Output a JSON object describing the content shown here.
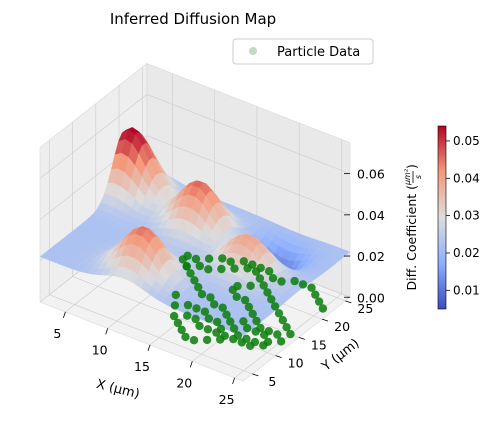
{
  "chart_data": {
    "type": "surface",
    "title": "Inferred Diffusion Map",
    "xlabel": "X (μm)",
    "ylabel": "Y (μm)",
    "zlabel_main": "Diff. Coefficient (",
    "zlabel_num": "μm²",
    "zlabel_den": "s",
    "zlabel_close": ")",
    "x_ticks": [
      5,
      10,
      15,
      20,
      25
    ],
    "y_ticks": [
      5,
      10,
      15,
      20,
      25
    ],
    "z_ticks": [
      "0.00",
      "0.02",
      "0.04",
      "0.06"
    ],
    "xlim": [
      2,
      26
    ],
    "ylim": [
      3,
      26
    ],
    "zlim": [
      0,
      0.06
    ],
    "grid": true,
    "legend": {
      "position": "top-right",
      "entries": [
        "Particle Data"
      ]
    },
    "colorbar": {
      "cmap": "coolwarm",
      "min": 0.005,
      "max": 0.054,
      "ticks": [
        "0.01",
        "0.02",
        "0.03",
        "0.04",
        "0.05"
      ]
    },
    "surface_peaks": [
      {
        "x": 3,
        "y": 21,
        "z": 0.054
      },
      {
        "x": 12,
        "y": 19,
        "z": 0.046
      },
      {
        "x": 12,
        "y": 7,
        "z": 0.045
      },
      {
        "x": 20,
        "y": 15,
        "z": 0.04
      }
    ],
    "surface_trough": {
      "x": 20,
      "y": 21,
      "z": 0.01
    },
    "particle_points": [
      [
        10,
        20
      ],
      [
        11,
        19
      ],
      [
        12,
        18
      ],
      [
        13,
        17
      ],
      [
        14,
        16
      ],
      [
        15,
        16
      ],
      [
        16,
        15
      ],
      [
        17,
        15
      ],
      [
        18,
        14
      ],
      [
        19,
        13
      ],
      [
        20,
        12
      ],
      [
        21,
        11
      ],
      [
        22,
        11
      ],
      [
        23,
        11
      ],
      [
        24,
        12
      ],
      [
        25,
        13
      ],
      [
        25,
        15
      ],
      [
        24,
        16
      ],
      [
        23,
        17
      ],
      [
        22,
        18
      ],
      [
        21,
        19
      ],
      [
        20,
        20
      ],
      [
        19,
        21
      ],
      [
        18,
        22
      ],
      [
        17,
        23
      ],
      [
        16,
        24
      ],
      [
        15,
        24
      ],
      [
        14,
        23
      ],
      [
        13,
        22
      ],
      [
        12,
        21
      ],
      [
        11,
        21
      ],
      [
        10,
        20
      ],
      [
        12,
        14
      ],
      [
        13,
        12
      ],
      [
        14,
        10
      ],
      [
        15,
        9
      ],
      [
        16,
        8
      ],
      [
        17,
        7
      ],
      [
        18,
        7
      ],
      [
        19,
        8
      ],
      [
        20,
        9
      ],
      [
        21,
        10
      ],
      [
        22,
        10
      ],
      [
        23,
        10
      ],
      [
        24,
        11
      ],
      [
        25,
        22
      ],
      [
        24,
        23
      ],
      [
        23,
        24
      ],
      [
        22,
        25
      ],
      [
        21,
        25
      ],
      [
        20,
        25
      ],
      [
        19,
        24
      ],
      [
        18,
        24
      ],
      [
        17,
        25
      ],
      [
        16,
        25
      ],
      [
        15,
        25
      ],
      [
        14,
        25
      ],
      [
        13,
        24
      ],
      [
        12,
        24
      ],
      [
        11,
        23
      ],
      [
        10,
        22
      ],
      [
        9,
        22
      ],
      [
        9,
        21
      ],
      [
        18,
        18
      ],
      [
        17,
        18
      ],
      [
        16,
        19
      ],
      [
        16,
        20
      ],
      [
        17,
        21
      ],
      [
        19,
        17
      ],
      [
        20,
        16
      ],
      [
        21,
        15
      ],
      [
        22,
        14
      ],
      [
        23,
        14
      ],
      [
        24,
        14
      ],
      [
        15,
        11
      ],
      [
        16,
        11
      ],
      [
        17,
        10
      ],
      [
        18,
        10
      ],
      [
        19,
        10
      ],
      [
        20,
        10
      ],
      [
        14,
        13
      ],
      [
        15,
        13
      ],
      [
        16,
        13
      ],
      [
        17,
        12
      ],
      [
        18,
        12
      ],
      [
        19,
        11
      ],
      [
        21,
        13
      ],
      [
        22,
        13
      ],
      [
        23,
        13
      ],
      [
        20,
        14
      ]
    ]
  }
}
